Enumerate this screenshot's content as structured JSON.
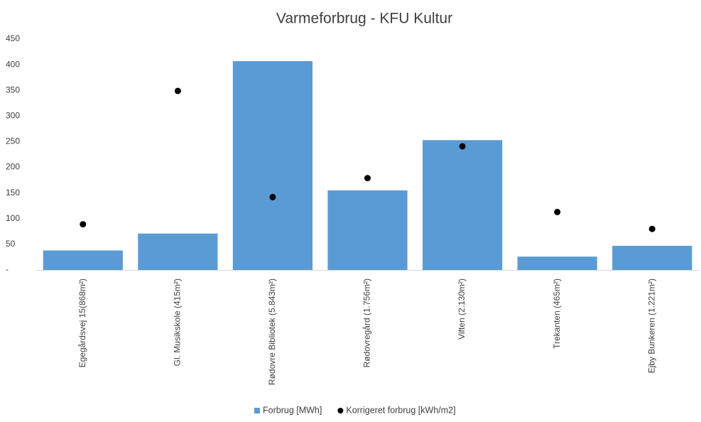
{
  "chart_data": {
    "type": "bar",
    "title": "Varmeforbrug - KFU Kultur",
    "categories": [
      "Egegårdsvej 15(868m²)",
      "Gl. Musikskole (415m²)",
      "Rødovre Bibliotek (5.843m²)",
      "Rødovregård (1.756m²)",
      "Viften (2.130m²)",
      "Trekanten (465m²)",
      "Ejby Bunkeren (1.221m²)"
    ],
    "series": [
      {
        "name": "Forbrug [MWh]",
        "type": "bar",
        "color": "#5b9bd5",
        "values": [
          38,
          71,
          407,
          155,
          253,
          26,
          47
        ]
      },
      {
        "name": "Korrigeret forbrug [kWh/m2]",
        "type": "scatter",
        "color": "#000000",
        "values": [
          89,
          349,
          142,
          179,
          241,
          113,
          80
        ]
      }
    ],
    "ylim": [
      0,
      450
    ],
    "yticks": [
      {
        "value": 0,
        "label": "-"
      },
      50,
      100,
      150,
      200,
      250,
      300,
      350,
      400,
      450
    ],
    "legend": "bottom"
  }
}
